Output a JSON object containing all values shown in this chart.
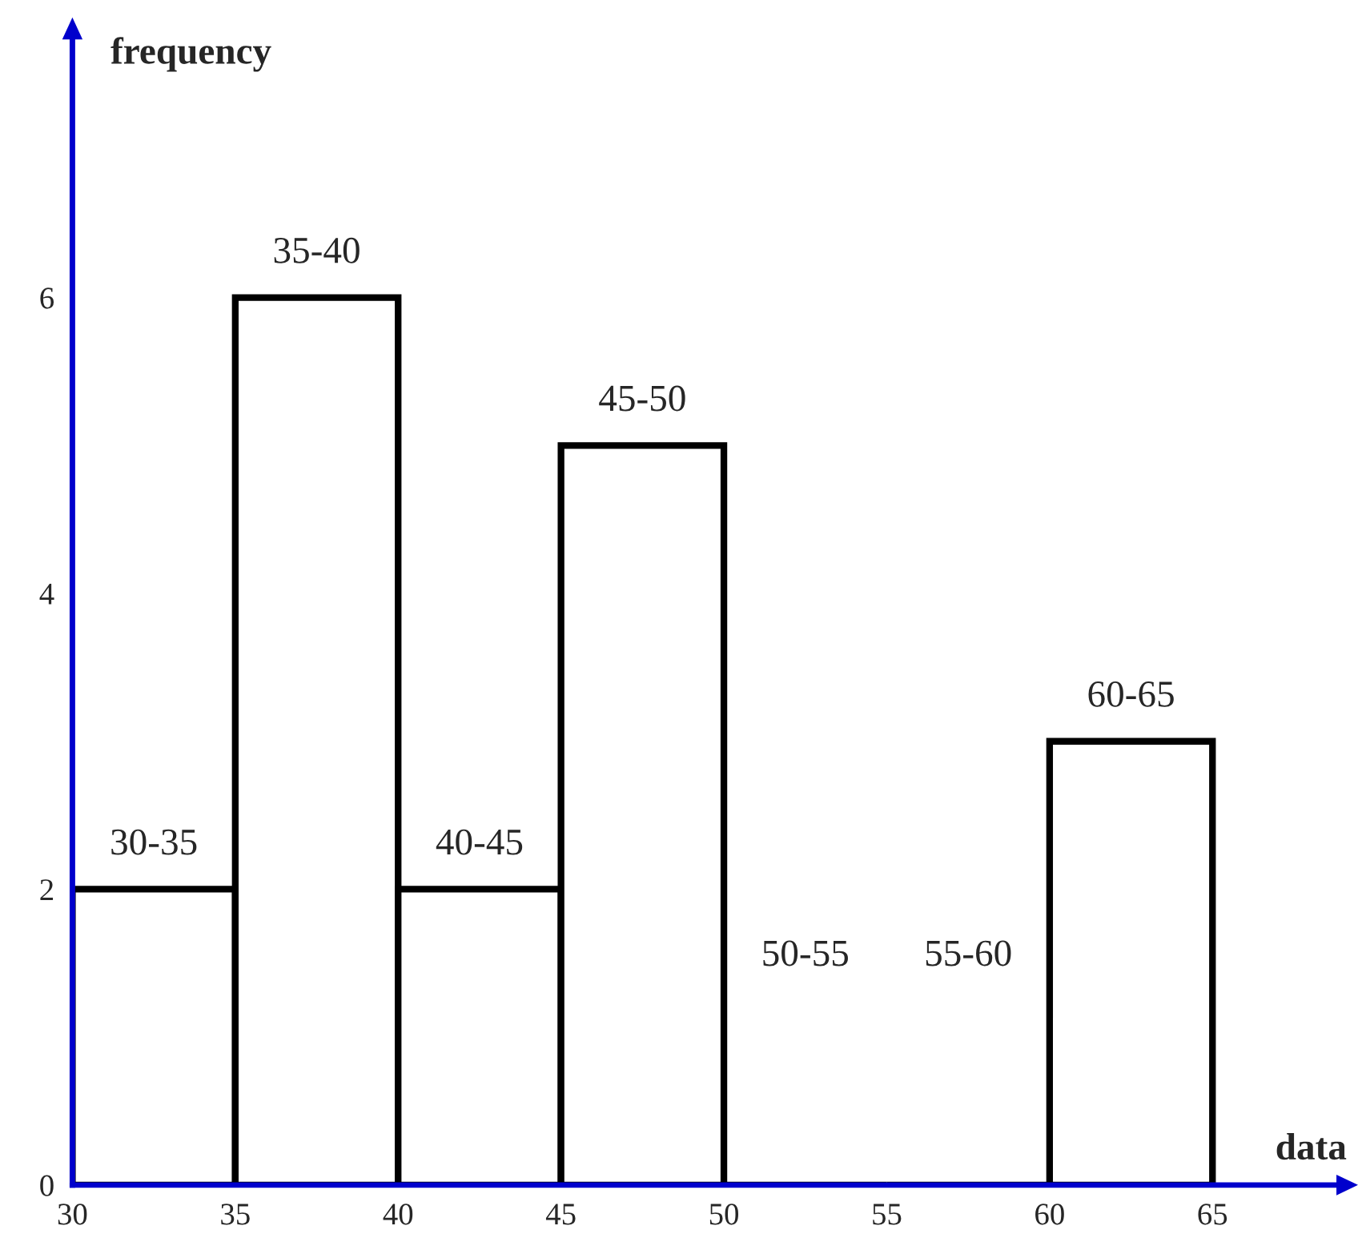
{
  "chart_data": {
    "type": "histogram",
    "xlabel": "data",
    "ylabel": "frequency",
    "bins": [
      30,
      35,
      40,
      45,
      50,
      55,
      60,
      65
    ],
    "values": [
      2,
      6,
      2,
      5,
      0,
      0,
      3
    ],
    "color": "#ffffff",
    "xlim": [
      30,
      69
    ],
    "xticks": [
      30,
      35,
      40,
      45,
      50,
      55,
      60,
      65
    ],
    "ylim": [
      0,
      7.8
    ],
    "yticks": [
      0,
      2,
      4,
      6
    ],
    "grid": false,
    "annotations": [
      {
        "text": "30-35",
        "x": 32.5,
        "y": 2
      },
      {
        "text": "35-40",
        "x": 37.5,
        "y": 6
      },
      {
        "text": "40-45",
        "x": 42.5,
        "y": 2
      },
      {
        "text": "45-50",
        "x": 47.5,
        "y": 5
      },
      "50-55",
      "55-60",
      {
        "text": "60-65",
        "x": 62.5,
        "y": 3
      }
    ]
  }
}
